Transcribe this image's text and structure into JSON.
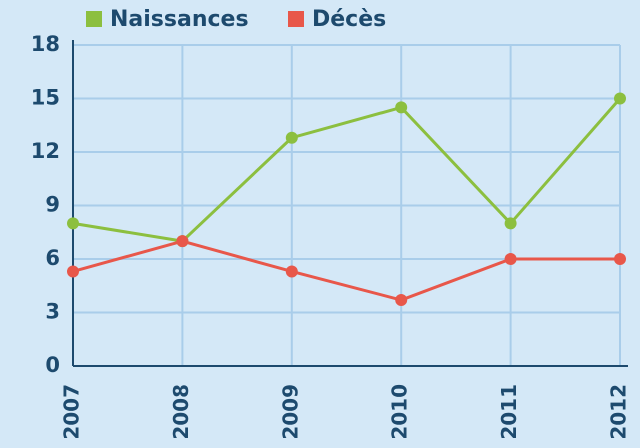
{
  "chart_data": {
    "type": "line",
    "categories": [
      "2007",
      "2008",
      "2009",
      "2010",
      "2011",
      "2012"
    ],
    "series": [
      {
        "name": "Naissances",
        "color": "#8cbf3f",
        "values": [
          8,
          7,
          12.8,
          14.5,
          8,
          15
        ]
      },
      {
        "name": "Décès",
        "color": "#e8574a",
        "values": [
          5.3,
          7,
          5.3,
          3.7,
          6,
          6
        ]
      }
    ],
    "ylim": [
      0,
      18
    ],
    "yticks": [
      0,
      3,
      6,
      9,
      12,
      15,
      18
    ],
    "grid": true,
    "legend": "top"
  }
}
